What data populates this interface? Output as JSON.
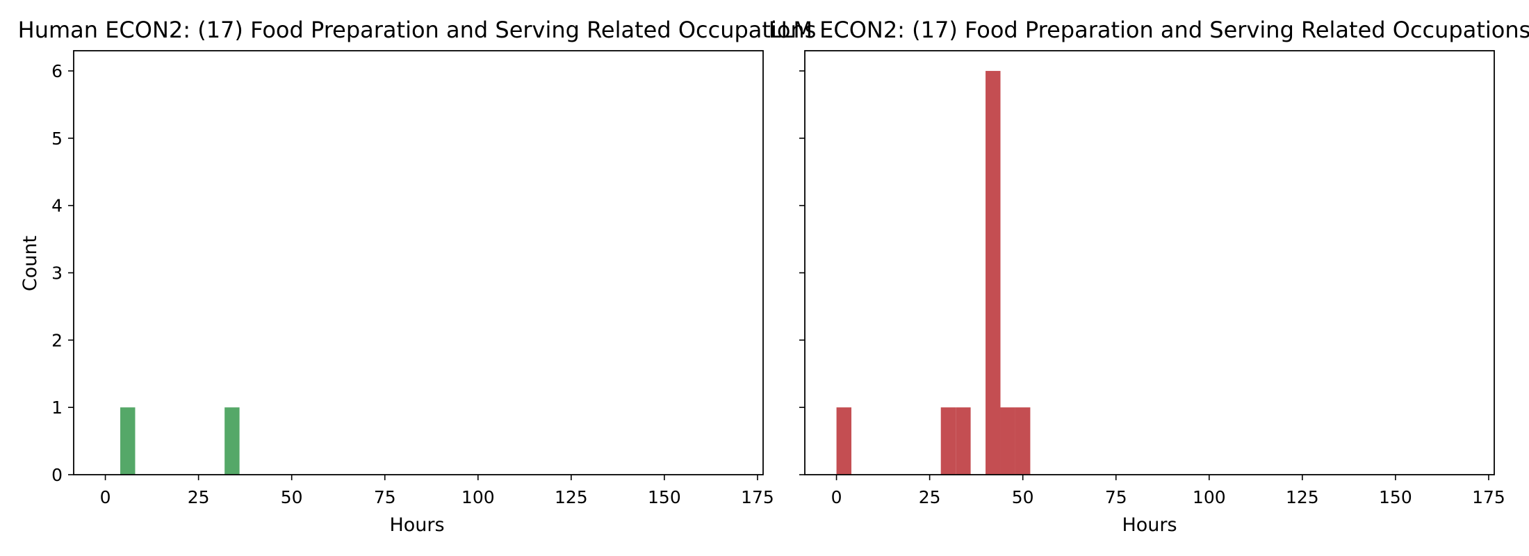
{
  "chart_data": [
    {
      "type": "bar",
      "title": "Human ECON2: (17) Food Preparation and Serving Related Occupations",
      "xlabel": "Hours",
      "ylabel": "Count",
      "xlim": [
        -8.5,
        176.5
      ],
      "ylim": [
        0,
        6.3
      ],
      "xticks": [
        0,
        25,
        50,
        75,
        100,
        125,
        150,
        175
      ],
      "yticks": [
        0,
        1,
        2,
        3,
        4,
        5,
        6
      ],
      "bin_width": 4,
      "color": "#55a868",
      "bins": [
        {
          "x0": 4,
          "x1": 8,
          "count": 1
        },
        {
          "x0": 32,
          "x1": 36,
          "count": 1
        }
      ]
    },
    {
      "type": "bar",
      "title": "LLM ECON2: (17) Food Preparation and Serving Related Occupations",
      "xlabel": "Hours",
      "ylabel": "",
      "xlim": [
        -8.5,
        176.5
      ],
      "ylim": [
        0,
        6.3
      ],
      "xticks": [
        0,
        25,
        50,
        75,
        100,
        125,
        150,
        175
      ],
      "yticks": [
        0,
        1,
        2,
        3,
        4,
        5,
        6
      ],
      "bin_width": 4,
      "color": "#c44e52",
      "bins": [
        {
          "x0": 0,
          "x1": 4,
          "count": 1
        },
        {
          "x0": 28,
          "x1": 32,
          "count": 1
        },
        {
          "x0": 32,
          "x1": 36,
          "count": 1
        },
        {
          "x0": 40,
          "x1": 44,
          "count": 6
        },
        {
          "x0": 44,
          "x1": 48,
          "count": 1
        },
        {
          "x0": 48,
          "x1": 52,
          "count": 1
        }
      ]
    }
  ]
}
